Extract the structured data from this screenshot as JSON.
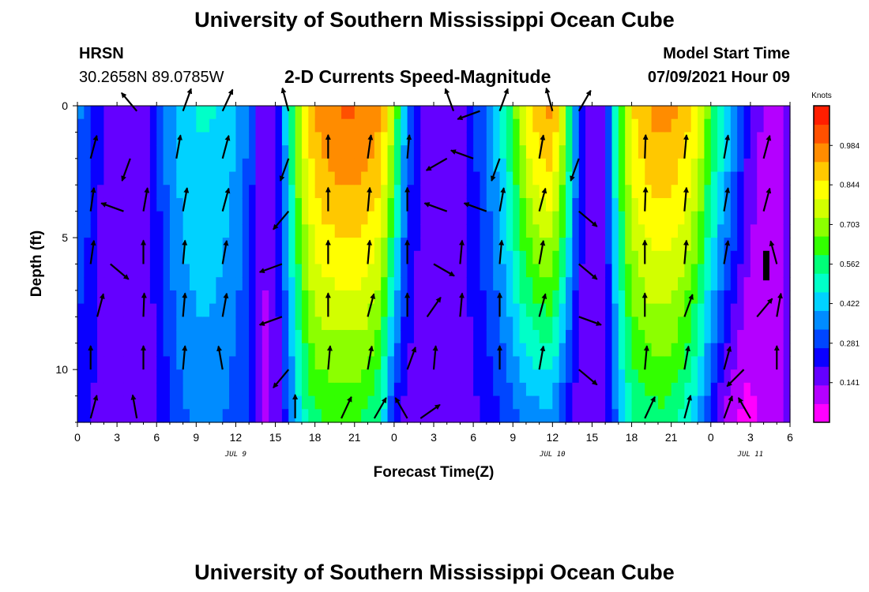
{
  "page_title": "University of Southern Mississippi Ocean Cube",
  "footer_title": "University of Southern Mississippi Ocean Cube",
  "station": {
    "name": "HRSN",
    "coords": "30.2658N  89.0785W"
  },
  "subtitle": "2-D Currents Speed-Magnitude",
  "model": {
    "label": "Model Start Time",
    "value": "07/09/2021 Hour 09"
  },
  "chart_data": {
    "type": "heatmap",
    "title": "2-D Currents Speed-Magnitude",
    "xlabel": "Forecast Time(Z)",
    "ylabel": "Depth (ft)",
    "x_hours_range": [
      0,
      54
    ],
    "y_depth_range": [
      0,
      12
    ],
    "x_tick_hours": [
      0,
      3,
      6,
      9,
      12,
      15,
      18,
      21,
      24,
      27,
      30,
      33,
      36,
      39,
      42,
      45,
      48,
      51,
      54
    ],
    "x_tick_labels": [
      "0",
      "3",
      "6",
      "9",
      "12",
      "15",
      "18",
      "21",
      "0",
      "3",
      "6",
      "9",
      "12",
      "15",
      "18",
      "21",
      "0",
      "3",
      "6"
    ],
    "y_tick_values": [
      0,
      5,
      10
    ],
    "y_tick_labels": [
      "0",
      "5",
      "10"
    ],
    "date_labels": [
      {
        "text": "JUL 9",
        "hour": 12
      },
      {
        "text": "JUL 10",
        "hour": 36
      },
      {
        "text": "JUL 11",
        "hour": 51
      }
    ],
    "colorbar": {
      "unit": "Knots",
      "range": [
        0.0,
        1.125
      ],
      "tick_values": [
        0.141,
        0.281,
        0.422,
        0.562,
        0.703,
        0.844,
        0.984
      ],
      "tick_labels": [
        "0.141",
        "0.281",
        "0.422",
        "0.562",
        "0.703",
        "0.844",
        "0.984"
      ]
    },
    "speed_profile": {
      "hours": [
        0,
        1,
        2,
        3,
        4,
        5,
        6,
        7,
        8,
        9,
        10,
        11,
        12,
        13,
        14,
        15,
        16,
        17,
        18,
        19,
        20,
        21,
        22,
        23,
        24,
        25,
        26,
        27,
        28,
        29,
        30,
        31,
        32,
        33,
        34,
        35,
        36,
        37,
        38,
        39,
        40,
        41,
        42,
        43,
        44,
        45,
        46,
        47,
        48,
        49,
        50,
        51,
        52,
        53,
        54
      ],
      "surface_knots": [
        0.35,
        0.28,
        0.18,
        0.14,
        0.13,
        0.16,
        0.26,
        0.38,
        0.44,
        0.47,
        0.47,
        0.45,
        0.4,
        0.32,
        0.14,
        0.14,
        0.5,
        0.8,
        0.94,
        0.98,
        1.0,
        1.0,
        0.98,
        0.94,
        0.7,
        0.32,
        0.2,
        0.15,
        0.15,
        0.17,
        0.26,
        0.34,
        0.45,
        0.62,
        0.82,
        0.92,
        0.95,
        0.7,
        0.28,
        0.15,
        0.2,
        0.6,
        0.85,
        0.92,
        0.95,
        0.95,
        0.9,
        0.82,
        0.62,
        0.48,
        0.35,
        0.18,
        0.12,
        0.12,
        0.14
      ],
      "bottom_knots": [
        0.22,
        0.2,
        0.16,
        0.14,
        0.13,
        0.14,
        0.18,
        0.26,
        0.32,
        0.35,
        0.35,
        0.33,
        0.3,
        0.26,
        0.12,
        0.14,
        0.3,
        0.48,
        0.58,
        0.6,
        0.6,
        0.6,
        0.58,
        0.5,
        0.22,
        0.16,
        0.15,
        0.14,
        0.14,
        0.15,
        0.18,
        0.22,
        0.26,
        0.3,
        0.34,
        0.36,
        0.36,
        0.22,
        0.14,
        0.14,
        0.16,
        0.38,
        0.52,
        0.56,
        0.57,
        0.56,
        0.5,
        0.4,
        0.25,
        0.12,
        0.05,
        0.04,
        0.1,
        0.12,
        0.14
      ]
    },
    "vectors": [
      {
        "hour": 1,
        "depth": 2,
        "dir": 15,
        "mag": 1.0
      },
      {
        "hour": 4,
        "depth": 2,
        "dir": 200,
        "mag": 1.0
      },
      {
        "hour": 7.5,
        "depth": 2,
        "dir": 10,
        "mag": 1.0
      },
      {
        "hour": 11,
        "depth": 2,
        "dir": 15,
        "mag": 1.0
      },
      {
        "hour": 16,
        "depth": 2,
        "dir": 200,
        "mag": 1.0
      },
      {
        "hour": 19,
        "depth": 2,
        "dir": 0,
        "mag": 1.0
      },
      {
        "hour": 22,
        "depth": 2,
        "dir": 8,
        "mag": 1.0
      },
      {
        "hour": 25,
        "depth": 2,
        "dir": 5,
        "mag": 1.0
      },
      {
        "hour": 28,
        "depth": 2,
        "dir": 240,
        "mag": 1.0
      },
      {
        "hour": 30,
        "depth": 2,
        "dir": 290,
        "mag": 1.0
      },
      {
        "hour": 32,
        "depth": 2,
        "dir": 200,
        "mag": 1.0
      },
      {
        "hour": 35,
        "depth": 2,
        "dir": 10,
        "mag": 1.0
      },
      {
        "hour": 38,
        "depth": 2,
        "dir": 200,
        "mag": 1.0
      },
      {
        "hour": 43,
        "depth": 2,
        "dir": 2,
        "mag": 1.0
      },
      {
        "hour": 46,
        "depth": 2,
        "dir": 5,
        "mag": 1.0
      },
      {
        "hour": 49,
        "depth": 2,
        "dir": 10,
        "mag": 1.0
      },
      {
        "hour": 52,
        "depth": 2,
        "dir": 15,
        "mag": 1.0
      },
      {
        "hour": 1,
        "depth": 4,
        "dir": 8,
        "mag": 1.0
      },
      {
        "hour": 3.5,
        "depth": 4,
        "dir": 290,
        "mag": 1.0
      },
      {
        "hour": 5,
        "depth": 4,
        "dir": 10,
        "mag": 1.0
      },
      {
        "hour": 8,
        "depth": 4,
        "dir": 10,
        "mag": 1.0
      },
      {
        "hour": 11,
        "depth": 4,
        "dir": 15,
        "mag": 1.0
      },
      {
        "hour": 16,
        "depth": 4,
        "dir": 220,
        "mag": 1.0
      },
      {
        "hour": 19,
        "depth": 4,
        "dir": 0,
        "mag": 1.0
      },
      {
        "hour": 22,
        "depth": 4,
        "dir": 5,
        "mag": 1.0
      },
      {
        "hour": 25,
        "depth": 4,
        "dir": 0,
        "mag": 1.0
      },
      {
        "hour": 28,
        "depth": 4,
        "dir": 290,
        "mag": 1.0
      },
      {
        "hour": 31,
        "depth": 4,
        "dir": 290,
        "mag": 1.0
      },
      {
        "hour": 32,
        "depth": 4,
        "dir": 10,
        "mag": 1.0
      },
      {
        "hour": 35,
        "depth": 4,
        "dir": 15,
        "mag": 1.0
      },
      {
        "hour": 38,
        "depth": 4,
        "dir": 130,
        "mag": 1.0
      },
      {
        "hour": 43,
        "depth": 4,
        "dir": 2,
        "mag": 1.0
      },
      {
        "hour": 46,
        "depth": 4,
        "dir": 5,
        "mag": 1.0
      },
      {
        "hour": 49,
        "depth": 4,
        "dir": 10,
        "mag": 1.0
      },
      {
        "hour": 52,
        "depth": 4,
        "dir": 15,
        "mag": 1.0
      },
      {
        "hour": 1,
        "depth": 6,
        "dir": 8,
        "mag": 1.0
      },
      {
        "hour": 2.5,
        "depth": 6,
        "dir": 130,
        "mag": 1.0
      },
      {
        "hour": 5,
        "depth": 6,
        "dir": 0,
        "mag": 1.0
      },
      {
        "hour": 8,
        "depth": 6,
        "dir": 5,
        "mag": 1.0
      },
      {
        "hour": 11,
        "depth": 6,
        "dir": 10,
        "mag": 1.0
      },
      {
        "hour": 15.5,
        "depth": 6,
        "dir": 250,
        "mag": 1.0
      },
      {
        "hour": 19,
        "depth": 6,
        "dir": 0,
        "mag": 1.0
      },
      {
        "hour": 22,
        "depth": 6,
        "dir": 5,
        "mag": 1.0
      },
      {
        "hour": 25,
        "depth": 6,
        "dir": 0,
        "mag": 1.0
      },
      {
        "hour": 27,
        "depth": 6,
        "dir": 120,
        "mag": 1.0
      },
      {
        "hour": 29,
        "depth": 6,
        "dir": 5,
        "mag": 1.0
      },
      {
        "hour": 32,
        "depth": 6,
        "dir": 5,
        "mag": 1.0
      },
      {
        "hour": 35,
        "depth": 6,
        "dir": 10,
        "mag": 1.0
      },
      {
        "hour": 38,
        "depth": 6,
        "dir": 130,
        "mag": 1.0
      },
      {
        "hour": 43,
        "depth": 6,
        "dir": 0,
        "mag": 1.0
      },
      {
        "hour": 46,
        "depth": 6,
        "dir": 5,
        "mag": 1.0
      },
      {
        "hour": 49,
        "depth": 6,
        "dir": 10,
        "mag": 1.0
      },
      {
        "hour": 53,
        "depth": 6,
        "dir": 345,
        "mag": 1.0
      },
      {
        "hour": 1.5,
        "depth": 8,
        "dir": 15,
        "mag": 1.0
      },
      {
        "hour": 5,
        "depth": 8,
        "dir": 2,
        "mag": 1.0
      },
      {
        "hour": 8,
        "depth": 8,
        "dir": 5,
        "mag": 1.0
      },
      {
        "hour": 11,
        "depth": 8,
        "dir": 10,
        "mag": 1.0
      },
      {
        "hour": 15.5,
        "depth": 8,
        "dir": 250,
        "mag": 1.0
      },
      {
        "hour": 19,
        "depth": 8,
        "dir": 0,
        "mag": 1.0
      },
      {
        "hour": 22,
        "depth": 8,
        "dir": 15,
        "mag": 1.0
      },
      {
        "hour": 25,
        "depth": 8,
        "dir": 0,
        "mag": 1.0
      },
      {
        "hour": 26.5,
        "depth": 8,
        "dir": 35,
        "mag": 1.0
      },
      {
        "hour": 29,
        "depth": 8,
        "dir": 5,
        "mag": 1.0
      },
      {
        "hour": 32,
        "depth": 8,
        "dir": 0,
        "mag": 1.0
      },
      {
        "hour": 35,
        "depth": 8,
        "dir": 15,
        "mag": 1.0
      },
      {
        "hour": 38,
        "depth": 8,
        "dir": 110,
        "mag": 1.0
      },
      {
        "hour": 43,
        "depth": 8,
        "dir": 0,
        "mag": 1.0
      },
      {
        "hour": 46,
        "depth": 8,
        "dir": 20,
        "mag": 1.0
      },
      {
        "hour": 51.5,
        "depth": 8,
        "dir": 40,
        "mag": 1.0
      },
      {
        "hour": 53,
        "depth": 8,
        "dir": 10,
        "mag": 1.0
      },
      {
        "hour": 1,
        "depth": 10,
        "dir": 0,
        "mag": 1.0
      },
      {
        "hour": 5,
        "depth": 10,
        "dir": 0,
        "mag": 1.0
      },
      {
        "hour": 8,
        "depth": 10,
        "dir": 5,
        "mag": 1.0
      },
      {
        "hour": 11,
        "depth": 10,
        "dir": 350,
        "mag": 1.0
      },
      {
        "hour": 16,
        "depth": 10,
        "dir": 220,
        "mag": 1.0
      },
      {
        "hour": 19,
        "depth": 10,
        "dir": 5,
        "mag": 1.0
      },
      {
        "hour": 22,
        "depth": 10,
        "dir": 10,
        "mag": 1.0
      },
      {
        "hour": 25,
        "depth": 10,
        "dir": 20,
        "mag": 1.0
      },
      {
        "hour": 27,
        "depth": 10,
        "dir": 5,
        "mag": 1.0
      },
      {
        "hour": 32,
        "depth": 10,
        "dir": 0,
        "mag": 1.0
      },
      {
        "hour": 35,
        "depth": 10,
        "dir": 10,
        "mag": 1.0
      },
      {
        "hour": 38,
        "depth": 10,
        "dir": 130,
        "mag": 1.0
      },
      {
        "hour": 43,
        "depth": 10,
        "dir": 5,
        "mag": 1.0
      },
      {
        "hour": 46,
        "depth": 10,
        "dir": 10,
        "mag": 1.0
      },
      {
        "hour": 49,
        "depth": 10,
        "dir": 15,
        "mag": 1.0
      },
      {
        "hour": 50.5,
        "depth": 10,
        "dir": 225,
        "mag": 1.0
      },
      {
        "hour": 53,
        "depth": 10,
        "dir": 0,
        "mag": 1.0
      },
      {
        "hour": 1,
        "depth": 11.85,
        "dir": 15,
        "mag": 1.0
      },
      {
        "hour": 4.5,
        "depth": 11.85,
        "dir": 350,
        "mag": 1.0
      },
      {
        "hour": 16.5,
        "depth": 11.85,
        "dir": 0,
        "mag": 1.0
      },
      {
        "hour": 20,
        "depth": 11.85,
        "dir": 25,
        "mag": 1.0
      },
      {
        "hour": 22.5,
        "depth": 11.85,
        "dir": 30,
        "mag": 1.0
      },
      {
        "hour": 25,
        "depth": 11.85,
        "dir": 330,
        "mag": 1.0
      },
      {
        "hour": 26,
        "depth": 11.85,
        "dir": 55,
        "mag": 1.0
      },
      {
        "hour": 43,
        "depth": 11.85,
        "dir": 25,
        "mag": 1.0
      },
      {
        "hour": 46,
        "depth": 11.85,
        "dir": 15,
        "mag": 1.0
      },
      {
        "hour": 49,
        "depth": 11.85,
        "dir": 20,
        "mag": 1.0
      },
      {
        "hour": 51,
        "depth": 11.85,
        "dir": 330,
        "mag": 1.0
      },
      {
        "hour": 4.5,
        "depth": 0.2,
        "dir": 320,
        "mag": 1.0
      },
      {
        "hour": 8,
        "depth": 0.2,
        "dir": 20,
        "mag": 1.0
      },
      {
        "hour": 11,
        "depth": 0.2,
        "dir": 25,
        "mag": 1.0
      },
      {
        "hour": 16,
        "depth": 0.2,
        "dir": 345,
        "mag": 1.0
      },
      {
        "hour": 28.5,
        "depth": 0.2,
        "dir": 340,
        "mag": 1.0
      },
      {
        "hour": 30.5,
        "depth": 0.2,
        "dir": 250,
        "mag": 1.0
      },
      {
        "hour": 32,
        "depth": 0.2,
        "dir": 20,
        "mag": 1.0
      },
      {
        "hour": 36,
        "depth": 0.2,
        "dir": 345,
        "mag": 1.0
      },
      {
        "hour": 38,
        "depth": 0.2,
        "dir": 30,
        "mag": 1.0
      }
    ]
  },
  "marker": {
    "name": "current-time",
    "hour": 52.2,
    "depth_from": 5.5,
    "depth_to": 6.5
  },
  "colors": {
    "palette": [
      "#ff00ff",
      "#b400ff",
      "#6400ff",
      "#0a00ff",
      "#0046ff",
      "#008cff",
      "#00d2ff",
      "#00ffc8",
      "#00ff78",
      "#32ff00",
      "#8cff00",
      "#d2ff00",
      "#ffff00",
      "#ffc800",
      "#ff8c00",
      "#ff5000",
      "#ff1e00"
    ],
    "axis": "#000000",
    "vector": "#000000"
  }
}
